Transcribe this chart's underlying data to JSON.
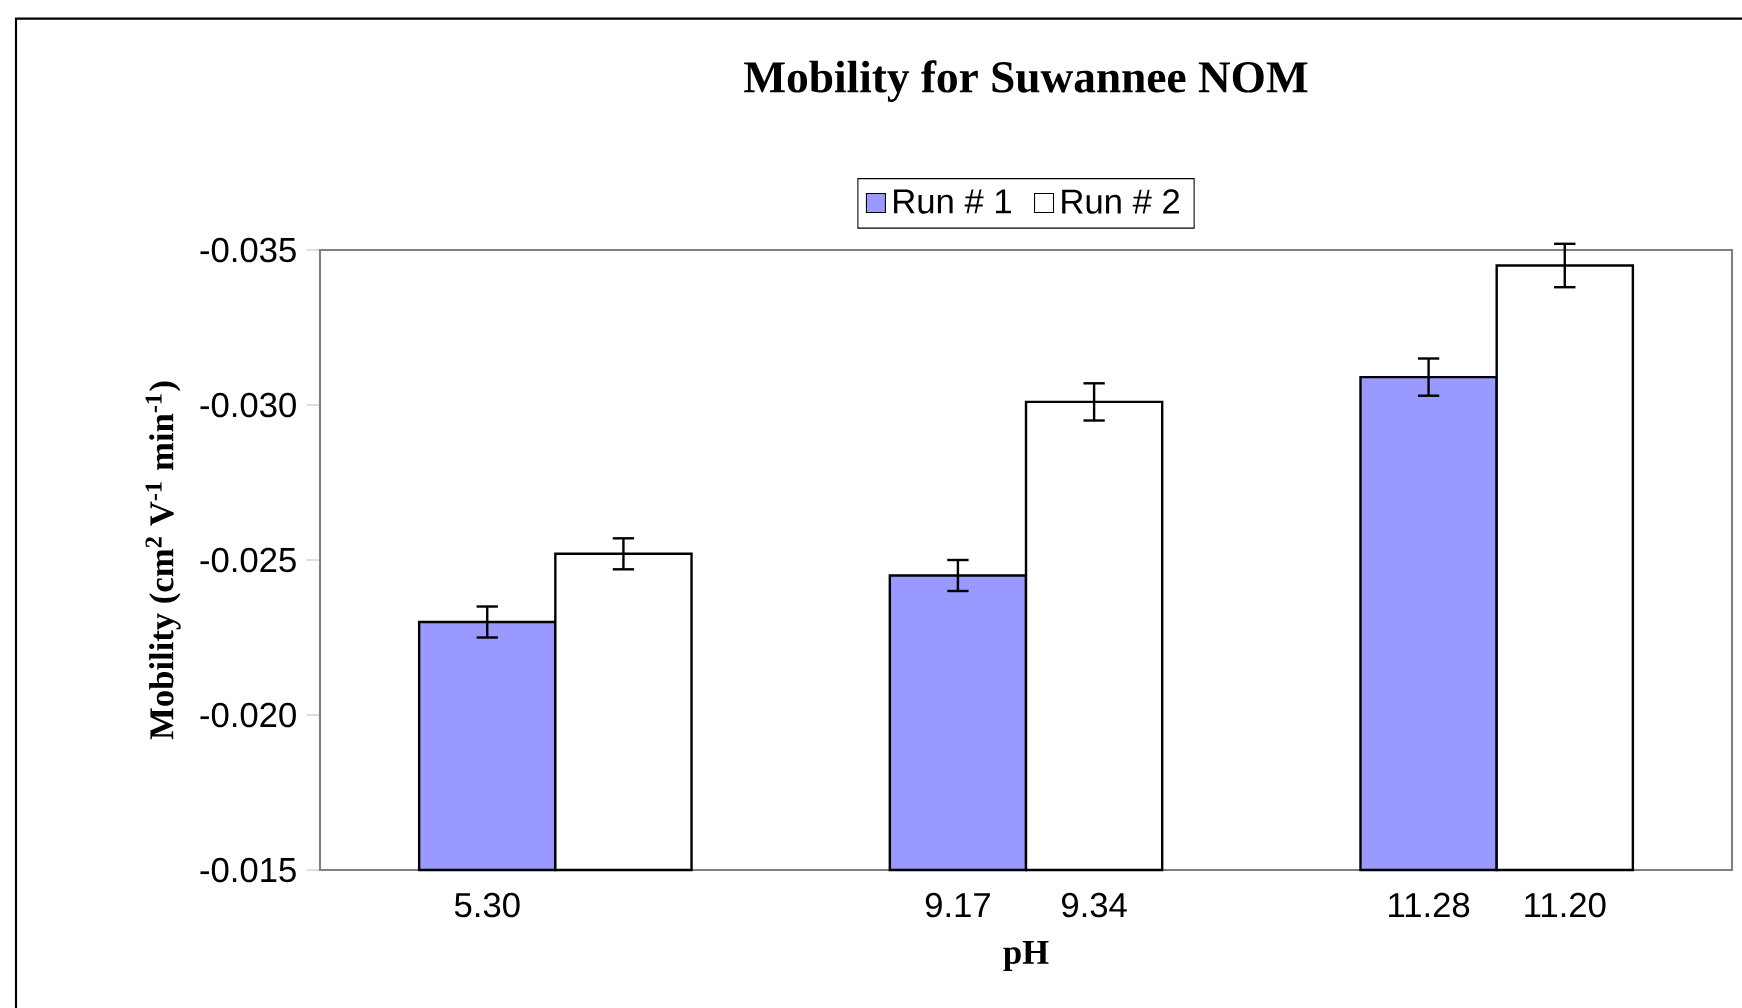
{
  "chart_data": {
    "type": "bar",
    "title": "Mobility for Suwannee NOM",
    "xlabel": "pH",
    "ylabel": "Mobility (cm$^{2}$ V$^{-1}$ min$^{-1}$)",
    "categories": [
      "5.30",
      null,
      "9.17",
      "9.34",
      "11.28",
      "11.20"
    ],
    "series": [
      {
        "name": "Run # 1",
        "color": "#9999ff",
        "values": [
          -0.023,
          null,
          -0.0245,
          null,
          -0.0309,
          null
        ],
        "errors": [
          0.0005,
          null,
          0.0005,
          null,
          0.0006,
          null
        ]
      },
      {
        "name": "Run # 2",
        "color": "#ffffff",
        "values": [
          null,
          -0.0252,
          null,
          -0.0301,
          null,
          -0.0345
        ],
        "errors": [
          null,
          0.0005,
          null,
          0.0006,
          null,
          0.0007
        ]
      }
    ],
    "ylim": [
      -0.015,
      -0.035
    ],
    "yticks": [
      {
        "value": -0.035,
        "label": "-0.035"
      },
      {
        "value": -0.03,
        "label": "-0.030"
      },
      {
        "value": -0.025,
        "label": "-0.025"
      },
      {
        "value": -0.02,
        "label": "-0.020"
      },
      {
        "value": -0.015,
        "label": "-0.015"
      }
    ],
    "legend": "top"
  }
}
